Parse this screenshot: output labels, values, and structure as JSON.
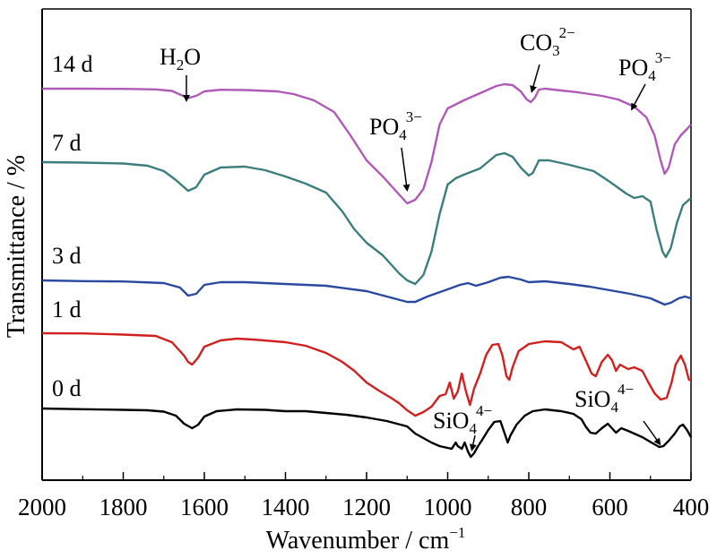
{
  "chart_data": {
    "type": "line",
    "xlabel": "Wavenumber / cm",
    "xlabel_sup": "−1",
    "ylabel": "Transmittance / %",
    "xlim": [
      2000,
      400
    ],
    "x_reversed": true,
    "x_ticks": [
      2000,
      1800,
      1600,
      1400,
      1200,
      1000,
      800,
      600,
      400
    ],
    "y_ticks": false,
    "grid": false,
    "legend": "none",
    "series": [
      {
        "name": "14 d",
        "color": "#b05ab8",
        "points": [
          [
            2000,
            0.0
          ],
          [
            1900,
            0.0
          ],
          [
            1800,
            0.2
          ],
          [
            1720,
            0.8
          ],
          [
            1680,
            2.5
          ],
          [
            1660,
            6.5
          ],
          [
            1640,
            10.5
          ],
          [
            1620,
            8
          ],
          [
            1600,
            3
          ],
          [
            1560,
            1.2
          ],
          [
            1500,
            1.5
          ],
          [
            1420,
            3
          ],
          [
            1380,
            6
          ],
          [
            1330,
            13
          ],
          [
            1280,
            26
          ],
          [
            1240,
            52
          ],
          [
            1200,
            80
          ],
          [
            1160,
            98
          ],
          [
            1120,
            118
          ],
          [
            1100,
            128
          ],
          [
            1080,
            124
          ],
          [
            1060,
            112
          ],
          [
            1040,
            82
          ],
          [
            1020,
            40
          ],
          [
            1000,
            22
          ],
          [
            960,
            13
          ],
          [
            920,
            5
          ],
          [
            880,
            -3
          ],
          [
            860,
            -5
          ],
          [
            840,
            -4
          ],
          [
            820,
            3
          ],
          [
            805,
            12
          ],
          [
            795,
            15
          ],
          [
            785,
            10
          ],
          [
            775,
            1
          ],
          [
            760,
            0
          ],
          [
            720,
            2
          ],
          [
            680,
            4
          ],
          [
            620,
            8
          ],
          [
            580,
            12
          ],
          [
            540,
            20
          ],
          [
            510,
            32
          ],
          [
            490,
            52
          ],
          [
            475,
            80
          ],
          [
            465,
            95
          ],
          [
            455,
            88
          ],
          [
            440,
            62
          ],
          [
            425,
            52
          ],
          [
            410,
            45
          ],
          [
            400,
            40
          ]
        ]
      },
      {
        "name": "7 d",
        "color": "#3c7d7d",
        "points": [
          [
            2000,
            0.0
          ],
          [
            1900,
            0.5
          ],
          [
            1800,
            1.5
          ],
          [
            1740,
            4
          ],
          [
            1700,
            10
          ],
          [
            1670,
            20
          ],
          [
            1640,
            32
          ],
          [
            1620,
            28
          ],
          [
            1600,
            14
          ],
          [
            1560,
            6
          ],
          [
            1500,
            5
          ],
          [
            1450,
            9
          ],
          [
            1400,
            16
          ],
          [
            1350,
            24
          ],
          [
            1300,
            34
          ],
          [
            1260,
            55
          ],
          [
            1230,
            75
          ],
          [
            1200,
            90
          ],
          [
            1160,
            104
          ],
          [
            1120,
            124
          ],
          [
            1100,
            132
          ],
          [
            1080,
            136
          ],
          [
            1060,
            126
          ],
          [
            1040,
            100
          ],
          [
            1020,
            58
          ],
          [
            1000,
            25
          ],
          [
            980,
            18
          ],
          [
            960,
            14
          ],
          [
            920,
            7
          ],
          [
            880,
            -8
          ],
          [
            860,
            -10
          ],
          [
            840,
            -6
          ],
          [
            820,
            6
          ],
          [
            800,
            15
          ],
          [
            790,
            12
          ],
          [
            775,
            -2
          ],
          [
            750,
            -2
          ],
          [
            700,
            3
          ],
          [
            640,
            10
          ],
          [
            600,
            22
          ],
          [
            560,
            35
          ],
          [
            540,
            40
          ],
          [
            520,
            38
          ],
          [
            500,
            44
          ],
          [
            485,
            75
          ],
          [
            470,
            100
          ],
          [
            462,
            106
          ],
          [
            450,
            96
          ],
          [
            435,
            68
          ],
          [
            420,
            48
          ],
          [
            400,
            40
          ]
        ]
      },
      {
        "name": "3 d",
        "color": "#2a4aa0",
        "points": [
          [
            2000,
            0.0
          ],
          [
            1900,
            0.8
          ],
          [
            1800,
            1.2
          ],
          [
            1700,
            3
          ],
          [
            1660,
            8
          ],
          [
            1640,
            17
          ],
          [
            1620,
            15
          ],
          [
            1600,
            5
          ],
          [
            1560,
            2
          ],
          [
            1500,
            2
          ],
          [
            1400,
            4
          ],
          [
            1300,
            6
          ],
          [
            1200,
            12
          ],
          [
            1150,
            18
          ],
          [
            1100,
            24
          ],
          [
            1080,
            24
          ],
          [
            1050,
            18
          ],
          [
            1000,
            10
          ],
          [
            970,
            5
          ],
          [
            950,
            3
          ],
          [
            930,
            6
          ],
          [
            900,
            2
          ],
          [
            870,
            -3
          ],
          [
            850,
            -4
          ],
          [
            820,
            -1
          ],
          [
            800,
            2
          ],
          [
            760,
            1
          ],
          [
            700,
            4
          ],
          [
            650,
            7
          ],
          [
            600,
            11
          ],
          [
            550,
            15
          ],
          [
            500,
            20
          ],
          [
            475,
            25
          ],
          [
            465,
            27
          ],
          [
            450,
            25
          ],
          [
            430,
            20
          ],
          [
            415,
            18
          ],
          [
            400,
            20
          ]
        ]
      },
      {
        "name": "1 d",
        "color": "#d02020",
        "points": [
          [
            2000,
            0.0
          ],
          [
            1900,
            0.2
          ],
          [
            1800,
            1.5
          ],
          [
            1720,
            3
          ],
          [
            1680,
            10
          ],
          [
            1650,
            25
          ],
          [
            1640,
            32
          ],
          [
            1630,
            35
          ],
          [
            1615,
            27
          ],
          [
            1600,
            15
          ],
          [
            1560,
            8
          ],
          [
            1520,
            6
          ],
          [
            1480,
            7
          ],
          [
            1400,
            10
          ],
          [
            1350,
            14
          ],
          [
            1300,
            22
          ],
          [
            1260,
            32
          ],
          [
            1230,
            42
          ],
          [
            1200,
            55
          ],
          [
            1170,
            64
          ],
          [
            1140,
            72
          ],
          [
            1120,
            78
          ],
          [
            1100,
            86
          ],
          [
            1080,
            92
          ],
          [
            1060,
            88
          ],
          [
            1040,
            82
          ],
          [
            1020,
            70
          ],
          [
            1005,
            68
          ],
          [
            995,
            55
          ],
          [
            985,
            73
          ],
          [
            975,
            65
          ],
          [
            965,
            45
          ],
          [
            955,
            65
          ],
          [
            945,
            80
          ],
          [
            935,
            62
          ],
          [
            920,
            45
          ],
          [
            905,
            24
          ],
          [
            890,
            13
          ],
          [
            875,
            12
          ],
          [
            865,
            25
          ],
          [
            855,
            48
          ],
          [
            848,
            52
          ],
          [
            840,
            38
          ],
          [
            825,
            20
          ],
          [
            800,
            12
          ],
          [
            760,
            9
          ],
          [
            720,
            10
          ],
          [
            690,
            18
          ],
          [
            675,
            15
          ],
          [
            660,
            30
          ],
          [
            645,
            45
          ],
          [
            635,
            48
          ],
          [
            620,
            32
          ],
          [
            605,
            24
          ],
          [
            595,
            30
          ],
          [
            585,
            42
          ],
          [
            575,
            35
          ],
          [
            555,
            40
          ],
          [
            540,
            38
          ],
          [
            520,
            42
          ],
          [
            505,
            55
          ],
          [
            490,
            67
          ],
          [
            475,
            74
          ],
          [
            460,
            72
          ],
          [
            448,
            55
          ],
          [
            438,
            35
          ],
          [
            425,
            25
          ],
          [
            415,
            35
          ],
          [
            405,
            52
          ],
          [
            400,
            52
          ]
        ]
      },
      {
        "name": "0 d",
        "color": "#000000",
        "points": [
          [
            2000,
            0.0
          ],
          [
            1900,
            0.8
          ],
          [
            1800,
            1.5
          ],
          [
            1740,
            2
          ],
          [
            1700,
            3.5
          ],
          [
            1670,
            8
          ],
          [
            1650,
            17
          ],
          [
            1630,
            22
          ],
          [
            1615,
            18
          ],
          [
            1600,
            9
          ],
          [
            1570,
            3
          ],
          [
            1520,
            1
          ],
          [
            1450,
            1.5
          ],
          [
            1400,
            3
          ],
          [
            1350,
            3
          ],
          [
            1300,
            5
          ],
          [
            1250,
            7
          ],
          [
            1200,
            10
          ],
          [
            1150,
            14
          ],
          [
            1100,
            20
          ],
          [
            1080,
            28
          ],
          [
            1060,
            33
          ],
          [
            1040,
            38
          ],
          [
            1020,
            42
          ],
          [
            1000,
            44
          ],
          [
            990,
            45
          ],
          [
            980,
            38
          ],
          [
            975,
            42
          ],
          [
            965,
            45
          ],
          [
            958,
            38
          ],
          [
            950,
            48
          ],
          [
            943,
            54
          ],
          [
            935,
            50
          ],
          [
            925,
            42
          ],
          [
            915,
            35
          ],
          [
            900,
            24
          ],
          [
            885,
            15
          ],
          [
            870,
            14
          ],
          [
            858,
            30
          ],
          [
            852,
            38
          ],
          [
            845,
            30
          ],
          [
            830,
            18
          ],
          [
            810,
            8
          ],
          [
            790,
            3
          ],
          [
            760,
            1
          ],
          [
            720,
            3
          ],
          [
            690,
            6
          ],
          [
            670,
            12
          ],
          [
            660,
            20
          ],
          [
            648,
            27
          ],
          [
            635,
            28
          ],
          [
            620,
            22
          ],
          [
            605,
            17
          ],
          [
            595,
            22
          ],
          [
            585,
            27
          ],
          [
            572,
            22
          ],
          [
            555,
            25
          ],
          [
            540,
            28
          ],
          [
            520,
            32
          ],
          [
            505,
            36
          ],
          [
            490,
            40
          ],
          [
            478,
            43
          ],
          [
            468,
            42
          ],
          [
            455,
            36
          ],
          [
            440,
            28
          ],
          [
            428,
            20
          ],
          [
            420,
            18
          ],
          [
            410,
            24
          ],
          [
            400,
            32
          ]
        ]
      }
    ]
  },
  "labels": [
    {
      "text": "14 d"
    },
    {
      "text": "7 d"
    },
    {
      "text": "3 d"
    },
    {
      "text": "1 d"
    },
    {
      "text": "0 d"
    }
  ],
  "annotations": [
    {
      "main": "H",
      "sub": "2",
      "rest": "O",
      "sup": ""
    },
    {
      "main": "PO",
      "sub": "4",
      "rest": "",
      "sup": "3−"
    },
    {
      "main": "CO",
      "sub": "3",
      "rest": "",
      "sup": "2−"
    },
    {
      "main": "PO",
      "sub": "4",
      "rest": "",
      "sup": "3−"
    },
    {
      "main": "SiO",
      "sub": "4",
      "rest": "",
      "sup": "4−"
    },
    {
      "main": "SiO",
      "sub": "4",
      "rest": "",
      "sup": "4−"
    }
  ]
}
